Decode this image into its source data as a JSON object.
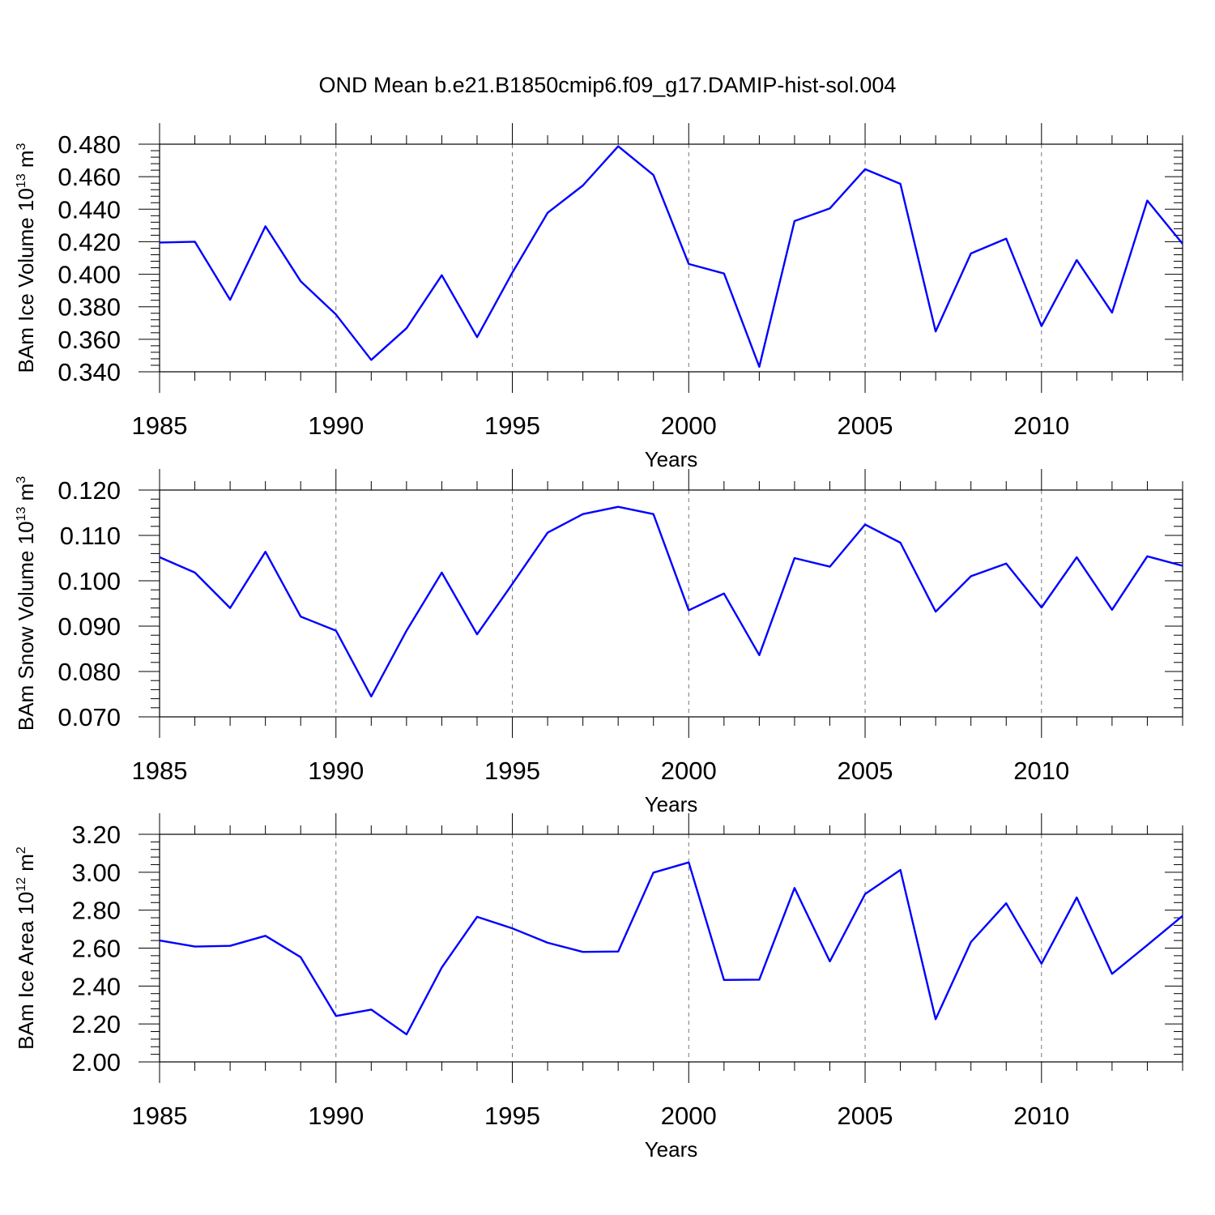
{
  "title": "OND Mean b.e21.B1850cmip6.f09_g17.DAMIP-hist-sol.004",
  "line_color": "#0000ff",
  "chart_data": [
    {
      "type": "line",
      "ylabel_main": "BAm Ice Volume 10",
      "ylabel_exp": "13",
      "ylabel_unit": " m",
      "ylabel_unit_exp": "3",
      "xlabel": "Years",
      "xlim": [
        1985,
        2014
      ],
      "ylim": [
        0.34,
        0.48
      ],
      "x_ticks": [
        1985,
        1990,
        1995,
        2000,
        2005,
        2010
      ],
      "x_tick_labels": [
        "1985",
        "1990",
        "1995",
        "2000",
        "2005",
        "2010"
      ],
      "y_ticks": [
        0.34,
        0.36,
        0.38,
        0.4,
        0.42,
        0.44,
        0.46,
        0.48
      ],
      "y_tick_labels": [
        "0.340",
        "0.360",
        "0.380",
        "0.400",
        "0.420",
        "0.440",
        "0.460",
        "0.480"
      ],
      "grid": "vertical dashed at major x ticks",
      "x": [
        1985,
        1986,
        1987,
        1988,
        1989,
        1990,
        1991,
        1992,
        1993,
        1994,
        1995,
        1996,
        1997,
        1998,
        1999,
        2000,
        2001,
        2002,
        2003,
        2004,
        2005,
        2006,
        2007,
        2008,
        2009,
        2010,
        2011,
        2012,
        2013,
        2014
      ],
      "y": [
        0.4195,
        0.42,
        0.3843,
        0.4295,
        0.3957,
        0.3752,
        0.3473,
        0.3668,
        0.3994,
        0.3613,
        0.401,
        0.4378,
        0.4546,
        0.4787,
        0.461,
        0.4063,
        0.4005,
        0.3431,
        0.4327,
        0.4405,
        0.4646,
        0.4556,
        0.3648,
        0.4128,
        0.4219,
        0.3681,
        0.4087,
        0.3764,
        0.4453,
        0.4187
      ]
    },
    {
      "type": "line",
      "ylabel_main": "BAm Snow Volume 10",
      "ylabel_exp": "13",
      "ylabel_unit": " m",
      "ylabel_unit_exp": "3",
      "xlabel": "Years",
      "xlim": [
        1985,
        2014
      ],
      "ylim": [
        0.07,
        0.12
      ],
      "x_ticks": [
        1985,
        1990,
        1995,
        2000,
        2005,
        2010
      ],
      "x_tick_labels": [
        "1985",
        "1990",
        "1995",
        "2000",
        "2005",
        "2010"
      ],
      "y_ticks": [
        0.07,
        0.08,
        0.09,
        0.1,
        0.11,
        0.12
      ],
      "y_tick_labels": [
        "0.070",
        "0.080",
        "0.090",
        "0.100",
        "0.110",
        "0.120"
      ],
      "grid": "vertical dashed at major x ticks",
      "x": [
        1985,
        1986,
        1987,
        1988,
        1989,
        1990,
        1991,
        1992,
        1993,
        1994,
        1995,
        1996,
        1997,
        1998,
        1999,
        2000,
        2001,
        2002,
        2003,
        2004,
        2005,
        2006,
        2007,
        2008,
        2009,
        2010,
        2011,
        2012,
        2013,
        2014
      ],
      "y": [
        0.1052,
        0.1018,
        0.094,
        0.1064,
        0.0921,
        0.089,
        0.0745,
        0.089,
        0.1018,
        0.0882,
        0.0993,
        0.1106,
        0.1147,
        0.1163,
        0.1147,
        0.0935,
        0.0972,
        0.0836,
        0.105,
        0.1031,
        0.1124,
        0.1084,
        0.0932,
        0.101,
        0.1038,
        0.0941,
        0.1052,
        0.0936,
        0.1054,
        0.1033
      ]
    },
    {
      "type": "line",
      "ylabel_main": "BAm Ice Area 10",
      "ylabel_exp": "12",
      "ylabel_unit": " m",
      "ylabel_unit_exp": "2",
      "xlabel": "Years",
      "xlim": [
        1985,
        2014
      ],
      "ylim": [
        2.0,
        3.2
      ],
      "x_ticks": [
        1985,
        1990,
        1995,
        2000,
        2005,
        2010
      ],
      "x_tick_labels": [
        "1985",
        "1990",
        "1995",
        "2000",
        "2005",
        "2010"
      ],
      "y_ticks": [
        2.0,
        2.2,
        2.4,
        2.6,
        2.8,
        3.0,
        3.2
      ],
      "y_tick_labels": [
        "2.00",
        "2.20",
        "2.40",
        "2.60",
        "2.80",
        "3.00",
        "3.20"
      ],
      "grid": "vertical dashed at major x ticks",
      "x": [
        1985,
        1986,
        1987,
        1988,
        1989,
        1990,
        1991,
        1992,
        1993,
        1994,
        1995,
        1996,
        1997,
        1998,
        1999,
        2000,
        2001,
        2002,
        2003,
        2004,
        2005,
        2006,
        2007,
        2008,
        2009,
        2010,
        2011,
        2012,
        2013,
        2014
      ],
      "y": [
        2.64,
        2.608,
        2.612,
        2.665,
        2.552,
        2.242,
        2.276,
        2.145,
        2.498,
        2.765,
        2.704,
        2.628,
        2.58,
        2.582,
        2.998,
        3.052,
        2.432,
        2.434,
        2.917,
        2.53,
        2.885,
        3.012,
        2.225,
        2.632,
        2.836,
        2.518,
        2.867,
        2.464,
        2.616,
        2.77
      ]
    }
  ]
}
